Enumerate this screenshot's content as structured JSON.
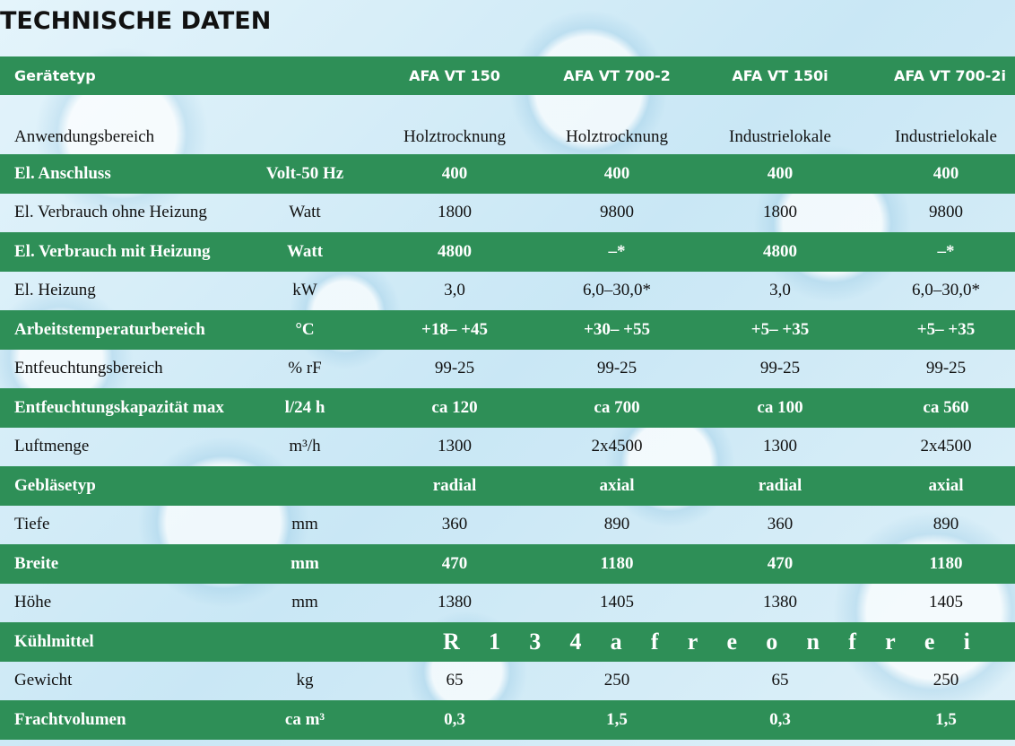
{
  "title": "TECHNISCHE DATEN",
  "header": {
    "label": "Gerätetyp",
    "models": [
      "AFA VT 150",
      "AFA VT 700-2",
      "AFA VT 150i",
      "AFA VT 700-2i"
    ]
  },
  "rows": [
    {
      "label": "Anwendungsbereich",
      "unit": "",
      "values": [
        "Holztrocknung",
        "Holztrocknung",
        "Industrielokale",
        "Industrielokale"
      ]
    },
    {
      "label": "El. Anschluss",
      "unit": "Volt-50 Hz",
      "values": [
        "400",
        "400",
        "400",
        "400"
      ]
    },
    {
      "label": "El. Verbrauch ohne Heizung",
      "unit": "Watt",
      "values": [
        "1800",
        "9800",
        "1800",
        "9800"
      ]
    },
    {
      "label": "El. Verbrauch mit Heizung",
      "unit": "Watt",
      "values": [
        "4800",
        "–*",
        "4800",
        "–*"
      ]
    },
    {
      "label": "El. Heizung",
      "unit": "kW",
      "values": [
        "3,0",
        "6,0–30,0*",
        "3,0",
        "6,0–30,0*"
      ]
    },
    {
      "label": "Arbeitstemperaturbereich",
      "unit": "°C",
      "values": [
        "+18– +45",
        "+30– +55",
        "+5– +35",
        "+5– +35"
      ]
    },
    {
      "label": "Entfeuchtungsbereich",
      "unit": "% rF",
      "values": [
        "99-25",
        "99-25",
        "99-25",
        "99-25"
      ]
    },
    {
      "label": "Entfeuchtungskapazität max",
      "unit": "l/24 h",
      "values": [
        "ca 120",
        "ca 700",
        "ca 100",
        "ca 560"
      ]
    },
    {
      "label": "Luftmenge",
      "unit": "m³/h",
      "values": [
        "1300",
        "2x4500",
        "1300",
        "2x4500"
      ]
    },
    {
      "label": "Gebläsetyp",
      "unit": "",
      "values": [
        "radial",
        "axial",
        "radial",
        "axial"
      ]
    },
    {
      "label": "Tiefe",
      "unit": "mm",
      "values": [
        "360",
        "890",
        "360",
        "890"
      ]
    },
    {
      "label": "Breite",
      "unit": "mm",
      "values": [
        "470",
        "1180",
        "470",
        "1180"
      ]
    },
    {
      "label": "Höhe",
      "unit": "mm",
      "values": [
        "1380",
        "1405",
        "1380",
        "1405"
      ]
    },
    {
      "label": "Kühlmittel",
      "unit": "",
      "span_letters": [
        "R",
        "1",
        "3",
        "4",
        "a",
        "f",
        "r",
        "e",
        "o",
        "n",
        "f",
        "r",
        "e",
        "i"
      ]
    },
    {
      "label": "Gewicht",
      "unit": "kg",
      "values": [
        "65",
        "250",
        "65",
        "250"
      ]
    },
    {
      "label": "Frachtvolumen",
      "unit": "ca m³",
      "values": [
        "0,3",
        "1,5",
        "0,3",
        "1,5"
      ]
    }
  ]
}
